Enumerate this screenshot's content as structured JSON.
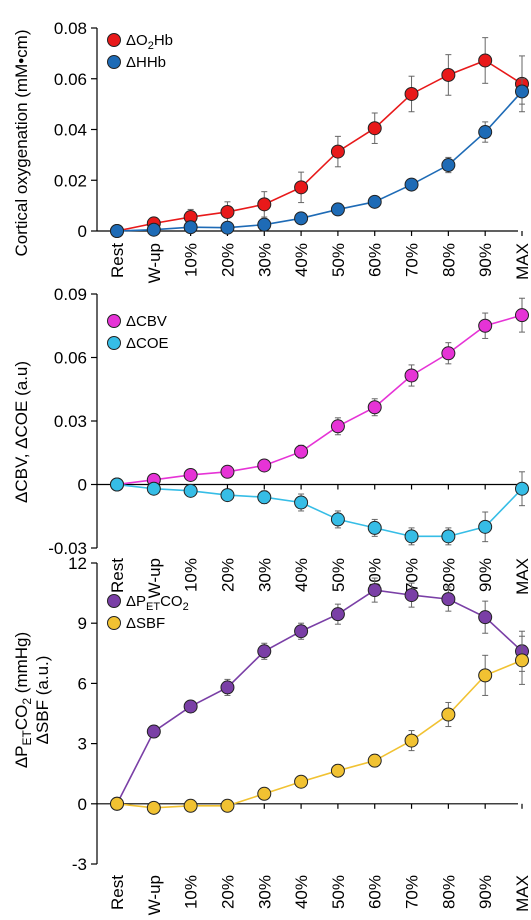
{
  "chart_data": [
    {
      "type": "line",
      "categories": [
        "Rest",
        "W-up",
        "10%",
        "20%",
        "30%",
        "40%",
        "50%",
        "60%",
        "70%",
        "80%",
        "90%",
        "MAX"
      ],
      "ylabel": "Cortical oxygenation (mM•cm)",
      "ylim": [
        0,
        0.08
      ],
      "yticks": [
        "0.08",
        "0.06",
        "0.04",
        "0.02",
        "0"
      ],
      "ytick_values": [
        0.08,
        0.06,
        0.04,
        0.02,
        0
      ],
      "legend_position": "top-left",
      "series": [
        {
          "name": "ΔO₂Hb",
          "color": "#e8191a",
          "values": [
            0,
            0.003,
            0.0055,
            0.0075,
            0.0105,
            0.0172,
            0.0313,
            0.0405,
            0.054,
            0.0615,
            0.0672,
            0.058
          ],
          "errors": [
            0,
            0.002,
            0.003,
            0.004,
            0.005,
            0.006,
            0.006,
            0.006,
            0.007,
            0.008,
            0.009,
            0.011
          ]
        },
        {
          "name": "ΔHHb",
          "color": "#1e6bb6",
          "values": [
            0,
            0.0005,
            0.0015,
            0.0013,
            0.0025,
            0.005,
            0.0085,
            0.0115,
            0.0183,
            0.026,
            0.039,
            0.055
          ],
          "errors": [
            0,
            0.001,
            0.001,
            0.001,
            0.001,
            0.001,
            0.001,
            0.001,
            0.002,
            0.003,
            0.004,
            0.005
          ]
        }
      ]
    },
    {
      "type": "line",
      "categories": [
        "Rest",
        "W-up",
        "10%",
        "20%",
        "30%",
        "40%",
        "50%",
        "60%",
        "70%",
        "80%",
        "90%",
        "MAX"
      ],
      "ylabel": "ΔCBV, ΔCOE (a.u)",
      "ylim": [
        -0.03,
        0.09
      ],
      "yticks": [
        "0.09",
        "0.06",
        "0.03",
        "0",
        "-0.03"
      ],
      "ytick_values": [
        0.09,
        0.06,
        0.03,
        0,
        -0.03
      ],
      "legend_position": "top-left",
      "series": [
        {
          "name": "ΔCBV",
          "color": "#e633d6",
          "values": [
            0,
            0.0022,
            0.0045,
            0.006,
            0.009,
            0.0155,
            0.0275,
            0.0365,
            0.0515,
            0.062,
            0.075,
            0.08
          ],
          "errors": [
            0,
            0.001,
            0.001,
            0.001,
            0.002,
            0.003,
            0.004,
            0.004,
            0.005,
            0.005,
            0.006,
            0.008
          ]
        },
        {
          "name": "ΔCOE",
          "color": "#36bde6",
          "values": [
            0,
            -0.002,
            -0.003,
            -0.005,
            -0.006,
            -0.0085,
            -0.0165,
            -0.0205,
            -0.0245,
            -0.0245,
            -0.02,
            -0.002
          ],
          "errors": [
            0,
            0.001,
            0.001,
            0.002,
            0.003,
            0.004,
            0.004,
            0.004,
            0.004,
            0.004,
            0.007,
            0.008
          ]
        }
      ]
    },
    {
      "type": "line",
      "categories": [
        "Rest",
        "W-up",
        "10%",
        "20%",
        "30%",
        "40%",
        "50%",
        "60%",
        "70%",
        "80%",
        "90%",
        "MAX"
      ],
      "ylabel": "ΔPETCO2 (mmHg) / ΔSBF (a.u.)",
      "ylim": [
        -3,
        12
      ],
      "yticks": [
        "12",
        "9",
        "6",
        "3",
        "0",
        "-3"
      ],
      "ytick_values": [
        12,
        9,
        6,
        3,
        0,
        -3
      ],
      "legend_position": "top-left",
      "series": [
        {
          "name": "ΔPETCO2",
          "color": "#7a3fa6",
          "values": [
            0,
            3.6,
            4.85,
            5.8,
            7.6,
            8.6,
            9.45,
            10.65,
            10.4,
            10.2,
            9.3,
            7.6
          ],
          "errors": [
            0,
            0.3,
            0.3,
            0.4,
            0.4,
            0.4,
            0.5,
            0.6,
            0.6,
            0.6,
            0.8,
            1.0
          ]
        },
        {
          "name": "ΔSBF",
          "color": "#f1c232",
          "values": [
            0,
            -0.2,
            -0.1,
            -0.1,
            0.5,
            1.1,
            1.65,
            2.15,
            3.15,
            4.45,
            6.4,
            7.15
          ],
          "errors": [
            0,
            0.1,
            0.1,
            0.1,
            0.2,
            0.2,
            0.3,
            0.3,
            0.5,
            0.6,
            1.0,
            1.2
          ]
        }
      ]
    }
  ]
}
